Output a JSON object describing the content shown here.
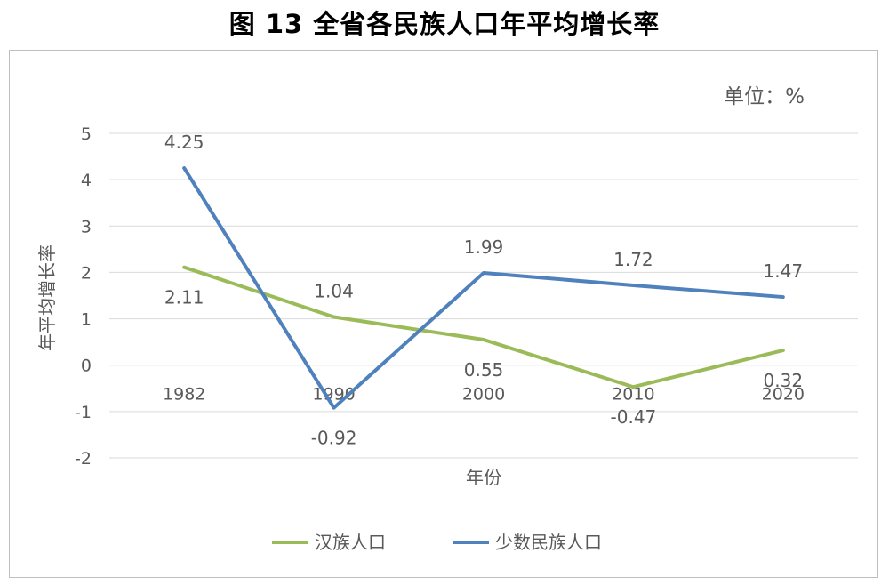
{
  "title": "图 13  全省各民族人口年平均增长率",
  "unit_label": "单位：%",
  "chart_data": {
    "type": "line",
    "x": [
      "1982",
      "1990",
      "2000",
      "2010",
      "2020"
    ],
    "xlabel": "年份",
    "ylabel": "年平均增长率",
    "ylim": [
      -2,
      5
    ],
    "yticks": [
      -2,
      -1,
      0,
      1,
      2,
      3,
      4,
      5
    ],
    "grid": true,
    "legend_position": "bottom",
    "series": [
      {
        "name": "汉族人口",
        "color": "#9bbb59",
        "values": [
          2.11,
          1.04,
          0.55,
          -0.47,
          0.32
        ]
      },
      {
        "name": "少数民族人口",
        "color": "#4f81bd",
        "values": [
          4.25,
          -0.92,
          1.99,
          1.72,
          1.47
        ]
      }
    ]
  }
}
